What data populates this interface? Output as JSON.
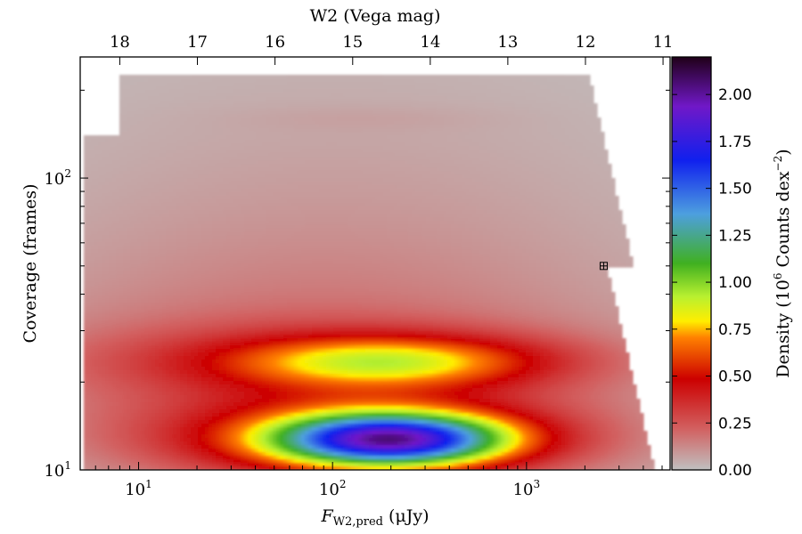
{
  "chart_data": {
    "type": "heatmap",
    "title": "",
    "xlabel": {
      "main": "F",
      "sub": "W2,pred",
      "unit": " (μJy)"
    },
    "ylabel": "Coverage (frames)",
    "top_xlabel": "W2 (Vega mag)",
    "colorbar_label": {
      "pre": "Density (10",
      "sup1": "6",
      "mid": " Counts dex",
      "sup2": "−2",
      "post": ")"
    },
    "x_scale": "log",
    "y_scale": "log",
    "xlim": [
      5,
      5500
    ],
    "ylim": [
      10,
      260
    ],
    "x_ticks": [
      {
        "value": 10,
        "base": "10",
        "exp": "1"
      },
      {
        "value": 100,
        "base": "10",
        "exp": "2"
      },
      {
        "value": 1000,
        "base": "10",
        "exp": "3"
      }
    ],
    "y_ticks": [
      {
        "value": 10,
        "base": "10",
        "exp": "1"
      },
      {
        "value": 100,
        "base": "10",
        "exp": "2"
      }
    ],
    "top_ticks": [
      {
        "label": "18",
        "flux": 8.0
      },
      {
        "label": "17",
        "flux": 20.1
      },
      {
        "label": "16",
        "flux": 50.5
      },
      {
        "label": "15",
        "flux": 127
      },
      {
        "label": "14",
        "flux": 319
      },
      {
        "label": "13",
        "flux": 801
      },
      {
        "label": "12",
        "flux": 2013
      },
      {
        "label": "11",
        "flux": 5057
      }
    ],
    "colorbar": {
      "range": [
        0,
        2.2
      ],
      "ticks": [
        "0.00",
        "0.25",
        "0.50",
        "0.75",
        "1.00",
        "1.25",
        "1.50",
        "1.75",
        "2.00"
      ],
      "tick_values": [
        0,
        0.25,
        0.5,
        0.75,
        1.0,
        1.25,
        1.5,
        1.75,
        2.0
      ],
      "colors": [
        [
          0.0,
          "#c0c0c0"
        ],
        [
          0.1,
          "#d26060"
        ],
        [
          0.22,
          "#cc0000"
        ],
        [
          0.32,
          "#ff8000"
        ],
        [
          0.36,
          "#ffee00"
        ],
        [
          0.42,
          "#b8f030"
        ],
        [
          0.5,
          "#40b020"
        ],
        [
          0.62,
          "#4d9fdf"
        ],
        [
          0.75,
          "#1020ee"
        ],
        [
          0.88,
          "#7018c8"
        ],
        [
          1.0,
          "#200018"
        ]
      ]
    },
    "density_components": [
      {
        "x": 200,
        "y": 12.7,
        "sx": 0.4,
        "sy": 0.06,
        "amp": 1.38
      },
      {
        "x": 150,
        "y": 12.8,
        "sx": 0.75,
        "sy": 0.1,
        "amp": 0.55
      },
      {
        "x": 200,
        "y": 23.5,
        "sx": 0.55,
        "sy": 0.06,
        "amp": 0.52
      },
      {
        "x": 90,
        "y": 23.5,
        "sx": 0.9,
        "sy": 0.09,
        "amp": 0.22
      },
      {
        "x": 80,
        "y": 20,
        "sx": 1.3,
        "sy": 0.28,
        "amp": 0.14
      },
      {
        "x": 90,
        "y": 40,
        "sx": 1.3,
        "sy": 0.4,
        "amp": 0.06
      },
      {
        "x": 110,
        "y": 110,
        "sx": 1.4,
        "sy": 0.45,
        "amp": 0.035
      },
      {
        "x": 150,
        "y": 160,
        "sx": 0.5,
        "sy": 0.03,
        "amp": 0.02
      }
    ],
    "point_marker": {
      "x": 2500,
      "y": 50
    }
  }
}
